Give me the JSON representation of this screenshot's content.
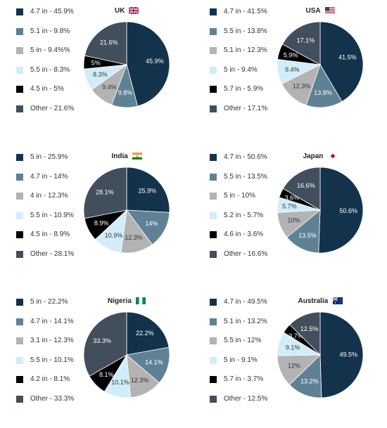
{
  "colors": {
    "navy": "#13334c",
    "steel": "#5f8195",
    "grey": "#b3b3b3",
    "light-blue": "#d1edf9",
    "black": "#000000",
    "slate": "#414e5b"
  },
  "chart_data": [
    {
      "type": "pie",
      "title": "UK",
      "flag": "uk-flag-icon",
      "labels": [
        "4.7 in",
        "5.1 in",
        "5 in",
        "5.5 in",
        "4.5 in",
        "Other"
      ],
      "legend": [
        "4.7 in - 45.9%",
        "5.1 in - 9.8%",
        "5 in - 9.4%%",
        "5.5 in - 8.3%",
        "4.5 in - 5%",
        "Other - 21.6%"
      ],
      "values": [
        45.9,
        9.8,
        9.4,
        8.3,
        5,
        21.6
      ],
      "value_labels": [
        "45.9%",
        "9.8%",
        "9.4%",
        "8.3%",
        "5%",
        "21.6%"
      ],
      "legend_placement": "left"
    },
    {
      "type": "pie",
      "title": "USA",
      "flag": "usa-flag-icon",
      "labels": [
        "4.7 in",
        "5.5 in",
        "5.1 in",
        "5 in",
        "5.7 in",
        "Other"
      ],
      "legend": [
        "4.7 in - 41.5%",
        "5.5 in - 13.8%",
        "5.1 in - 12.3%",
        "5 in - 9.4%",
        "5.7 in - 5.9%",
        "Other - 17.1%"
      ],
      "values": [
        41.5,
        13.8,
        12.3,
        9.4,
        5.9,
        17.1
      ],
      "value_labels": [
        "41.5%",
        "13.8%",
        "12.3%",
        "9.4%",
        "5.9%",
        "17.1%"
      ],
      "legend_placement": "left"
    },
    {
      "type": "pie",
      "title": "India",
      "flag": "india-flag-icon",
      "labels": [
        "5 in",
        "4.7 in",
        "4 in",
        "5.5 in",
        "4.5 in",
        "Other"
      ],
      "legend": [
        "5 in - 25.9%",
        "4.7 in - 14%",
        "4 in - 12.3%",
        "5.5 in - 10.9%",
        "4.5 in - 8.9%",
        "Other - 28.1%"
      ],
      "values": [
        25.9,
        14,
        12.3,
        10.9,
        8.9,
        28.1
      ],
      "value_labels": [
        "25.9%",
        "14%",
        "12.3%",
        "10.9%",
        "8.9%",
        "28.1%"
      ],
      "legend_placement": "left"
    },
    {
      "type": "pie",
      "title": "Japan",
      "flag": "japan-flag-icon",
      "labels": [
        "4.7 in",
        "5.5 in",
        "5 in",
        "5.2 in",
        "4.6 in",
        "Other"
      ],
      "legend": [
        "4.7 in - 50.6%",
        "5.5 in - 13.5%",
        "5 in - 10%",
        "5.2 in - 5.7%",
        "4.6 in - 3.6%",
        "Other - 16.6%"
      ],
      "values": [
        50.6,
        13.5,
        10,
        5.7,
        3.6,
        16.6
      ],
      "value_labels": [
        "50.6%",
        "13.5%",
        "10%",
        "5.7%",
        "3.6%",
        "16.6%"
      ],
      "legend_placement": "left"
    },
    {
      "type": "pie",
      "title": "Nigeria",
      "flag": "nigeria-flag-icon",
      "labels": [
        "5 in",
        "4.7 in",
        "3.1 in",
        "5.5 in",
        "4.2 in",
        "Other"
      ],
      "legend": [
        "5 in - 22.2%",
        "4.7 in - 14.1%",
        "3.1 in - 12.3%",
        "5.5 in - 10.1%",
        "4.2 in - 8.1%",
        "Other - 33.3%"
      ],
      "values": [
        22.2,
        14.1,
        12.3,
        10.1,
        8.1,
        33.3
      ],
      "value_labels": [
        "22.2%",
        "14.1%",
        "12.3%",
        "10.1%",
        "8.1%",
        "33.3%"
      ],
      "legend_placement": "left"
    },
    {
      "type": "pie",
      "title": "Australia",
      "flag": "australia-flag-icon",
      "labels": [
        "4.7 in",
        "5.1 in",
        "5.5 in",
        "5 in",
        "5.7 in",
        "Other"
      ],
      "legend": [
        "4.7 in - 49.5%",
        "5.1 in - 13.2%",
        "5.5 in - 12%",
        "5 in - 9.1%",
        "5.7 in - 3.7%",
        "Other - 12.5%"
      ],
      "values": [
        49.5,
        13.2,
        12,
        9.1,
        3.7,
        12.5
      ],
      "value_labels": [
        "49.5%",
        "13.2%",
        "12%",
        "9.1%",
        "3.7%",
        "12.5%"
      ],
      "legend_placement": "left"
    }
  ]
}
